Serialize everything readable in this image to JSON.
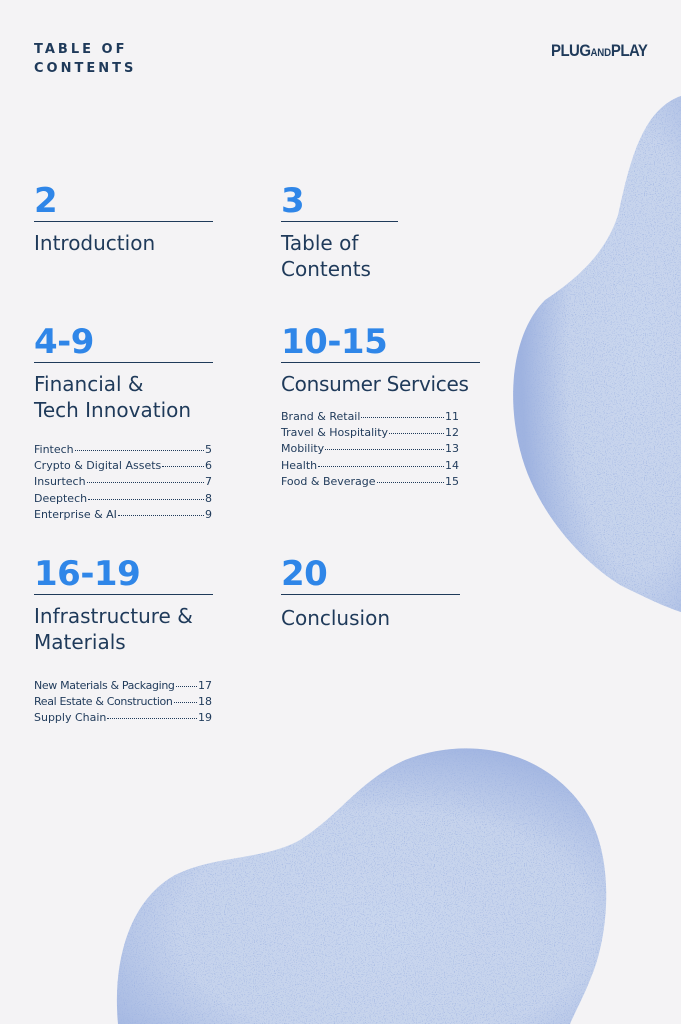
{
  "header": {
    "title": "TABLE OF\nCONTENTS",
    "logo_main": "PLUG",
    "logo_and": "AND",
    "logo_end": "PLAY"
  },
  "sections": [
    {
      "pages": "2",
      "title": "Introduction",
      "items": []
    },
    {
      "pages": "3",
      "title": "Table of\nContents",
      "items": []
    },
    {
      "pages": "4-9",
      "title": "Financial &\nTech Innovation",
      "items": [
        {
          "label": "Fintech",
          "page": "5"
        },
        {
          "label": "Crypto & Digital Assets",
          "page": "6"
        },
        {
          "label": "Insurtech",
          "page": "7"
        },
        {
          "label": "Deeptech",
          "page": "8"
        },
        {
          "label": "Enterprise & AI",
          "page": "9"
        }
      ]
    },
    {
      "pages": "10-15",
      "title": "Consumer Services",
      "items": [
        {
          "label": "Brand & Retail",
          "page": "11"
        },
        {
          "label": "Travel & Hospitality",
          "page": "12"
        },
        {
          "label": "Mobility",
          "page": "13"
        },
        {
          "label": "Health",
          "page": "14"
        },
        {
          "label": "Food & Beverage",
          "page": "15"
        }
      ]
    },
    {
      "pages": "16-19",
      "title": "Infrastructure &\nMaterials",
      "items": [
        {
          "label": "New Materials & Packaging",
          "page": "17"
        },
        {
          "label": "Real Estate & Construction",
          "page": "18"
        },
        {
          "label": "Supply Chain",
          "page": "19"
        }
      ]
    },
    {
      "pages": "20",
      "title": "Conclusion",
      "items": []
    }
  ],
  "colors": {
    "accent": "#2f86e8",
    "text": "#1f3a5a",
    "blob": "#c9d6ee",
    "blob_dots": "#5571c2",
    "background": "#f4f3f5"
  }
}
